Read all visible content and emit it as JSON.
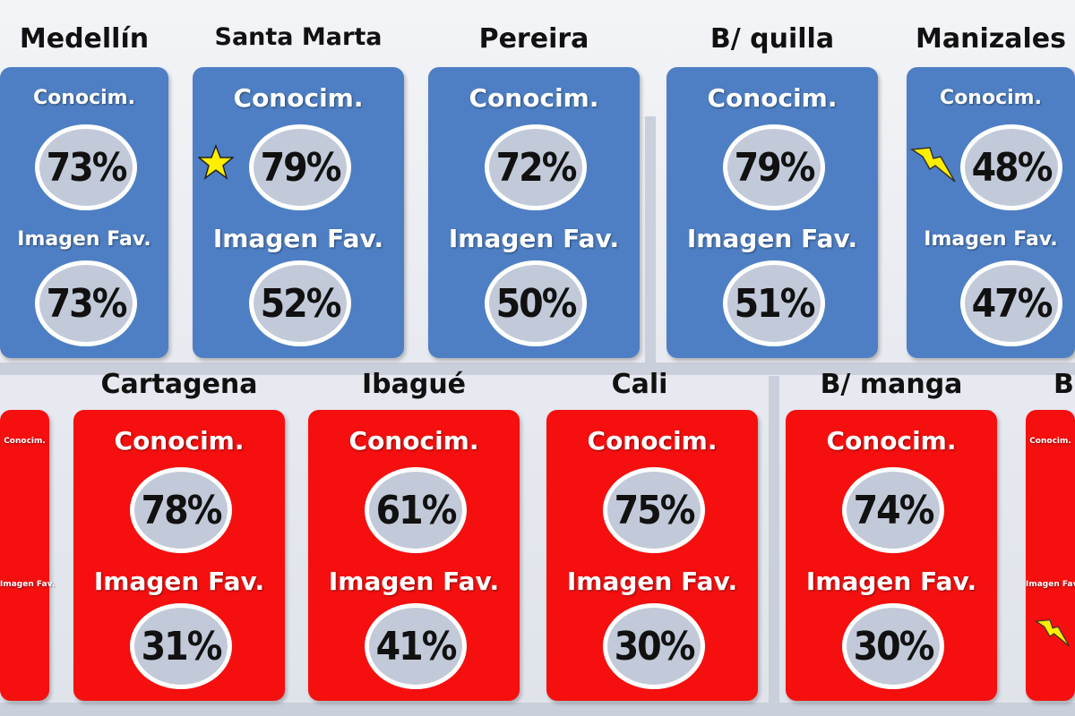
{
  "colors": {
    "favorable_row": "#4e7fc4",
    "unfavorable_row": "#f50f0f",
    "circle": "#c2cad9"
  },
  "labels": {
    "knowledge": "Conocim.",
    "image": "Imagen Fav."
  },
  "top_row": [
    {
      "city": "Medellín",
      "knowledge": "73%",
      "image": "73%"
    },
    {
      "city": "Santa Marta",
      "knowledge": "79%",
      "image": "52%",
      "icon": "star-icon"
    },
    {
      "city": "Pereira",
      "knowledge": "72%",
      "image": "50%"
    },
    {
      "city": "B/ quilla",
      "knowledge": "79%",
      "image": "51%"
    },
    {
      "city": "Manizales",
      "knowledge": "48%",
      "image": "47%",
      "icon": "lightning-icon"
    }
  ],
  "bottom_row": [
    {
      "city": "",
      "knowledge": "",
      "image": ""
    },
    {
      "city": "Cartagena",
      "knowledge": "78%",
      "image": "31%"
    },
    {
      "city": "Ibagué",
      "knowledge": "61%",
      "image": "41%"
    },
    {
      "city": "Cali",
      "knowledge": "75%",
      "image": "30%"
    },
    {
      "city": "B/ manga",
      "knowledge": "74%",
      "image": "30%"
    },
    {
      "city": "B",
      "knowledge": "",
      "image": "",
      "icon": "lightning-icon"
    }
  ]
}
